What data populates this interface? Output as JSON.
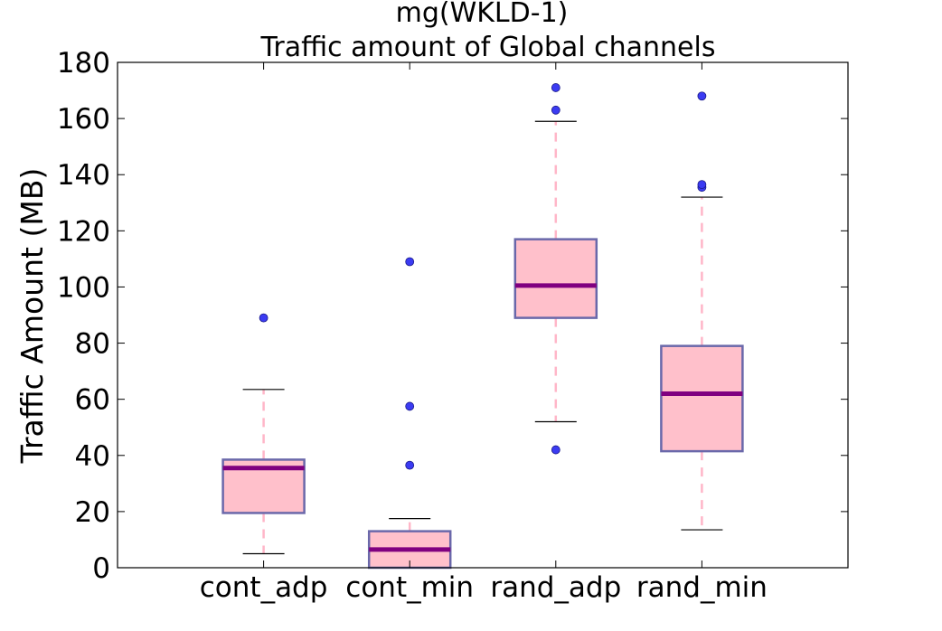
{
  "chart_data": {
    "type": "box",
    "title": "mg(WKLD-1)",
    "subtitle": "Traffic amount of Global channels",
    "xlabel": "",
    "ylabel": "Traffic Amount (MB)",
    "ylim": [
      0,
      180
    ],
    "yticks": [
      0,
      20,
      40,
      60,
      80,
      100,
      120,
      140,
      160,
      180
    ],
    "grid": false,
    "categories": [
      "cont_adp",
      "cont_min",
      "rand_adp",
      "rand_min"
    ],
    "boxes": [
      {
        "category": "cont_adp",
        "whisker_low": 5,
        "q1": 19.5,
        "median": 35.5,
        "q3": 38.5,
        "whisker_high": 63.5,
        "outliers": [
          89
        ]
      },
      {
        "category": "cont_min",
        "whisker_low": 0,
        "q1": 0,
        "median": 6.5,
        "q3": 13,
        "whisker_high": 17.5,
        "outliers": [
          36.5,
          57.5,
          109
        ]
      },
      {
        "category": "rand_adp",
        "whisker_low": 52,
        "q1": 89,
        "median": 100.5,
        "q3": 117,
        "whisker_high": 159,
        "outliers": [
          42,
          163,
          171
        ]
      },
      {
        "category": "rand_min",
        "whisker_low": 13.5,
        "q1": 41.5,
        "median": 62,
        "q3": 79,
        "whisker_high": 132,
        "outliers": [
          135.5,
          136.5,
          168
        ]
      }
    ],
    "colors": {
      "box_fill": "#ffc0cb",
      "box_edge": "#6a68aa",
      "median": "#800080",
      "whisker": "#ffb6c8",
      "cap": "#000000",
      "outlier_fill": "#3b3bf2",
      "outlier_edge": "#1a1a88"
    }
  }
}
